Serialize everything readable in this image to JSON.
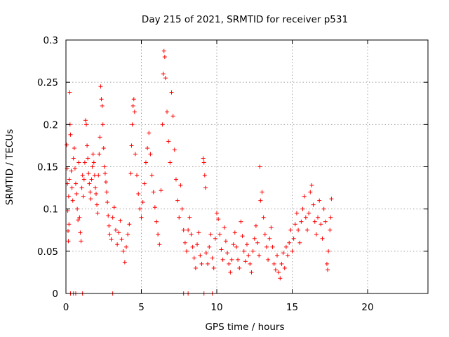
{
  "chart_data": {
    "type": "scatter",
    "title": "Day 215 of 2021, SRMTID for receiver p531",
    "xlabel": "GPS time / hours",
    "ylabel": "SRMTID / TECUs",
    "xlim": [
      0,
      24
    ],
    "ylim": [
      0,
      0.3
    ],
    "xticks": [
      0,
      5,
      10,
      15,
      20
    ],
    "xtick_labels": [
      "0",
      "5",
      "10",
      "15",
      "20"
    ],
    "yticks": [
      0,
      0.05,
      0.1,
      0.15,
      0.2,
      0.25,
      0.3
    ],
    "ytick_labels": [
      "0",
      "0.05",
      "0.1",
      "0.15",
      "0.2",
      "0.25",
      "0.3"
    ],
    "grid": true,
    "marker": "+",
    "color": "#ff0000",
    "series": [
      {
        "name": "SRMTID",
        "points": [
          [
            0.05,
            0.176
          ],
          [
            0.08,
            0.148
          ],
          [
            0.1,
            0.13
          ],
          [
            0.12,
            0.098
          ],
          [
            0.14,
            0.074
          ],
          [
            0.16,
            0.062
          ],
          [
            0.18,
            0.115
          ],
          [
            0.2,
            0.082
          ],
          [
            0.22,
            0.135
          ],
          [
            0.25,
            0.238
          ],
          [
            0.27,
            0.2
          ],
          [
            0.3,
            0.188
          ],
          [
            0.35,
            0.145
          ],
          [
            0.4,
            0.125
          ],
          [
            0.45,
            0.11
          ],
          [
            0.5,
            0.16
          ],
          [
            0.55,
            0.172
          ],
          [
            0.6,
            0.148
          ],
          [
            0.65,
            0.13
          ],
          [
            0.7,
            0.118
          ],
          [
            0.75,
            0.1
          ],
          [
            0.8,
            0.087
          ],
          [
            0.85,
            0.155
          ],
          [
            0.9,
            0.09
          ],
          [
            0.95,
            0.072
          ],
          [
            1.0,
            0.062
          ],
          [
            1.05,
            0.125
          ],
          [
            1.1,
            0.14
          ],
          [
            1.15,
            0.115
          ],
          [
            1.2,
            0.135
          ],
          [
            1.25,
            0.155
          ],
          [
            1.3,
            0.205
          ],
          [
            1.35,
            0.2
          ],
          [
            1.4,
            0.175
          ],
          [
            1.45,
            0.16
          ],
          [
            1.5,
            0.142
          ],
          [
            1.55,
            0.13
          ],
          [
            1.6,
            0.12
          ],
          [
            1.65,
            0.112
          ],
          [
            1.7,
            0.135
          ],
          [
            1.75,
            0.15
          ],
          [
            1.8,
            0.165
          ],
          [
            1.85,
            0.155
          ],
          [
            1.9,
            0.14
          ],
          [
            1.95,
            0.125
          ],
          [
            2.0,
            0.118
          ],
          [
            2.05,
            0.105
          ],
          [
            2.1,
            0.095
          ],
          [
            2.15,
            0.14
          ],
          [
            2.2,
            0.165
          ],
          [
            2.25,
            0.185
          ],
          [
            2.3,
            0.245
          ],
          [
            2.35,
            0.23
          ],
          [
            2.4,
            0.222
          ],
          [
            2.45,
            0.2
          ],
          [
            2.5,
            0.172
          ],
          [
            2.55,
            0.15
          ],
          [
            2.6,
            0.142
          ],
          [
            2.65,
            0.132
          ],
          [
            2.7,
            0.12
          ],
          [
            2.75,
            0.108
          ],
          [
            2.8,
            0.092
          ],
          [
            2.85,
            0.08
          ],
          [
            2.9,
            0.07
          ],
          [
            3.0,
            0.064
          ],
          [
            3.1,
            0.09
          ],
          [
            3.2,
            0.102
          ],
          [
            3.3,
            0.075
          ],
          [
            3.4,
            0.058
          ],
          [
            3.5,
            0.072
          ],
          [
            3.6,
            0.086
          ],
          [
            3.7,
            0.064
          ],
          [
            3.8,
            0.05
          ],
          [
            3.9,
            0.037
          ],
          [
            4.0,
            0.055
          ],
          [
            4.1,
            0.07
          ],
          [
            4.2,
            0.082
          ],
          [
            4.3,
            0.142
          ],
          [
            4.35,
            0.175
          ],
          [
            4.4,
            0.2
          ],
          [
            4.45,
            0.222
          ],
          [
            4.5,
            0.23
          ],
          [
            4.55,
            0.215
          ],
          [
            4.6,
            0.165
          ],
          [
            4.7,
            0.14
          ],
          [
            4.8,
            0.118
          ],
          [
            4.9,
            0.1
          ],
          [
            5.0,
            0.09
          ],
          [
            5.1,
            0.108
          ],
          [
            5.2,
            0.13
          ],
          [
            5.3,
            0.155
          ],
          [
            5.4,
            0.172
          ],
          [
            5.5,
            0.19
          ],
          [
            5.6,
            0.165
          ],
          [
            5.7,
            0.14
          ],
          [
            5.8,
            0.12
          ],
          [
            5.9,
            0.102
          ],
          [
            6.0,
            0.085
          ],
          [
            6.1,
            0.07
          ],
          [
            6.2,
            0.058
          ],
          [
            6.3,
            0.122
          ],
          [
            6.4,
            0.2
          ],
          [
            6.45,
            0.26
          ],
          [
            6.5,
            0.287
          ],
          [
            6.55,
            0.28
          ],
          [
            6.6,
            0.255
          ],
          [
            6.7,
            0.215
          ],
          [
            6.8,
            0.18
          ],
          [
            6.9,
            0.155
          ],
          [
            7.0,
            0.238
          ],
          [
            7.1,
            0.21
          ],
          [
            7.2,
            0.17
          ],
          [
            7.3,
            0.135
          ],
          [
            7.4,
            0.11
          ],
          [
            7.5,
            0.09
          ],
          [
            7.6,
            0.128
          ],
          [
            7.7,
            0.1
          ],
          [
            7.8,
            0.075
          ],
          [
            7.9,
            0.06
          ],
          [
            8.0,
            0.05
          ],
          [
            8.1,
            0.075
          ],
          [
            8.2,
            0.09
          ],
          [
            8.3,
            0.07
          ],
          [
            8.4,
            0.055
          ],
          [
            8.5,
            0.042
          ],
          [
            8.6,
            0.03
          ],
          [
            8.7,
            0.058
          ],
          [
            8.8,
            0.072
          ],
          [
            8.9,
            0.045
          ],
          [
            9.0,
            0.035
          ],
          [
            9.1,
            0.16
          ],
          [
            9.15,
            0.155
          ],
          [
            9.2,
            0.14
          ],
          [
            9.25,
            0.125
          ],
          [
            9.3,
            0.048
          ],
          [
            9.4,
            0.035
          ],
          [
            9.5,
            0.055
          ],
          [
            9.6,
            0.07
          ],
          [
            9.7,
            0.042
          ],
          [
            9.8,
            0.03
          ],
          [
            9.9,
            0.065
          ],
          [
            10.0,
            0.095
          ],
          [
            10.1,
            0.088
          ],
          [
            10.2,
            0.07
          ],
          [
            10.3,
            0.052
          ],
          [
            10.4,
            0.04
          ],
          [
            10.5,
            0.078
          ],
          [
            10.6,
            0.062
          ],
          [
            10.7,
            0.048
          ],
          [
            10.8,
            0.035
          ],
          [
            10.9,
            0.025
          ],
          [
            11.0,
            0.04
          ],
          [
            11.1,
            0.058
          ],
          [
            11.2,
            0.072
          ],
          [
            11.3,
            0.055
          ],
          [
            11.4,
            0.04
          ],
          [
            11.5,
            0.03
          ],
          [
            11.6,
            0.085
          ],
          [
            11.7,
            0.068
          ],
          [
            11.8,
            0.05
          ],
          [
            11.9,
            0.038
          ],
          [
            12.0,
            0.058
          ],
          [
            12.1,
            0.045
          ],
          [
            12.2,
            0.035
          ],
          [
            12.3,
            0.025
          ],
          [
            12.4,
            0.05
          ],
          [
            12.5,
            0.065
          ],
          [
            12.6,
            0.08
          ],
          [
            12.7,
            0.06
          ],
          [
            12.8,
            0.045
          ],
          [
            12.85,
            0.15
          ],
          [
            12.9,
            0.11
          ],
          [
            13.0,
            0.12
          ],
          [
            13.1,
            0.09
          ],
          [
            13.2,
            0.07
          ],
          [
            13.3,
            0.055
          ],
          [
            13.4,
            0.04
          ],
          [
            13.5,
            0.065
          ],
          [
            13.6,
            0.078
          ],
          [
            13.7,
            0.055
          ],
          [
            13.8,
            0.035
          ],
          [
            13.9,
            0.028
          ],
          [
            14.0,
            0.045
          ],
          [
            14.1,
            0.025
          ],
          [
            14.2,
            0.018
          ],
          [
            14.3,
            0.035
          ],
          [
            14.4,
            0.048
          ],
          [
            14.5,
            0.03
          ],
          [
            14.6,
            0.055
          ],
          [
            14.7,
            0.045
          ],
          [
            14.8,
            0.06
          ],
          [
            14.9,
            0.075
          ],
          [
            15.0,
            0.05
          ],
          [
            15.1,
            0.065
          ],
          [
            15.2,
            0.082
          ],
          [
            15.3,
            0.095
          ],
          [
            15.4,
            0.075
          ],
          [
            15.5,
            0.06
          ],
          [
            15.6,
            0.085
          ],
          [
            15.7,
            0.1
          ],
          [
            15.8,
            0.115
          ],
          [
            15.9,
            0.09
          ],
          [
            16.0,
            0.075
          ],
          [
            16.1,
            0.095
          ],
          [
            16.2,
            0.12
          ],
          [
            16.3,
            0.128
          ],
          [
            16.4,
            0.105
          ],
          [
            16.5,
            0.085
          ],
          [
            16.6,
            0.07
          ],
          [
            16.7,
            0.09
          ],
          [
            16.8,
            0.11
          ],
          [
            16.9,
            0.082
          ],
          [
            17.0,
            0.065
          ],
          [
            17.1,
            0.1
          ],
          [
            17.2,
            0.085
          ],
          [
            17.3,
            0.035
          ],
          [
            17.35,
            0.028
          ],
          [
            17.4,
            0.05
          ],
          [
            17.5,
            0.075
          ],
          [
            17.55,
            0.09
          ],
          [
            17.6,
            0.112
          ],
          [
            0.3,
            0.0
          ],
          [
            0.5,
            0.0
          ],
          [
            0.65,
            0.0
          ],
          [
            1.1,
            0.0
          ],
          [
            3.1,
            0.0
          ],
          [
            7.8,
            0.0
          ],
          [
            8.1,
            0.0
          ],
          [
            9.15,
            0.0
          ],
          [
            9.7,
            0.0
          ]
        ]
      }
    ]
  }
}
